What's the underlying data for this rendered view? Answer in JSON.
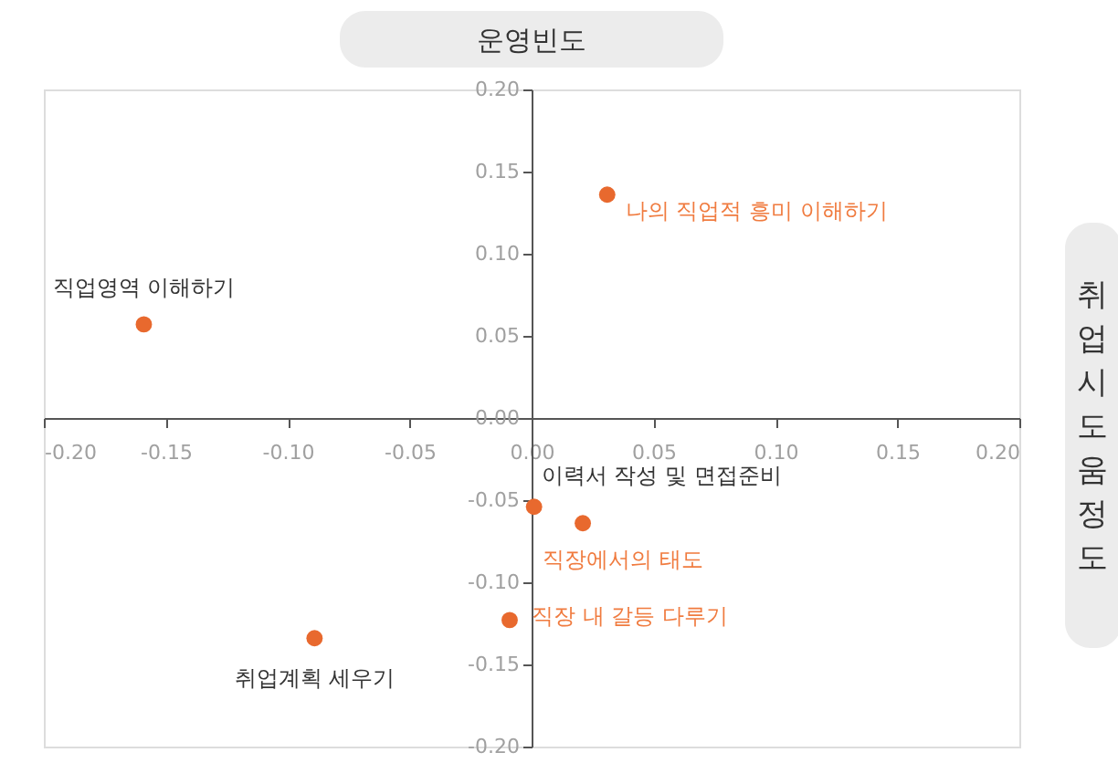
{
  "chart_data": {
    "type": "scatter",
    "xlabel": "취업시 도움정도",
    "ylabel": "운영빈도",
    "x": [
      0.031,
      -0.159,
      0.001,
      0.021,
      -0.009,
      -0.089
    ],
    "values": [
      0.136,
      0.057,
      -0.054,
      -0.064,
      -0.123,
      -0.134
    ],
    "color": "#e8692e",
    "marker": "circle",
    "xlim": [
      -0.2,
      0.2
    ],
    "xticks": [
      {
        "value": -0.2,
        "label": "-0.20"
      },
      {
        "value": -0.15,
        "label": "-0.15"
      },
      {
        "value": -0.1,
        "label": "-0.10"
      },
      {
        "value": -0.05,
        "label": "-0.05"
      },
      {
        "value": 0,
        "label": "0.00"
      },
      {
        "value": 0.05,
        "label": "0.05"
      },
      {
        "value": 0.1,
        "label": "0.10"
      },
      {
        "value": 0.15,
        "label": "0.15"
      },
      {
        "value": 0.2,
        "label": "0.20"
      }
    ],
    "ylim": [
      -0.2,
      0.2
    ],
    "yticks": [
      {
        "value": -0.2,
        "label": "-0.20"
      },
      {
        "value": -0.15,
        "label": "-0.15"
      },
      {
        "value": -0.1,
        "label": "-0.10"
      },
      {
        "value": -0.05,
        "label": "-0.05"
      },
      {
        "value": 0,
        "label": "0.00"
      },
      {
        "value": 0.05,
        "label": "0.05"
      },
      {
        "value": 0.1,
        "label": "0.10"
      },
      {
        "value": 0.15,
        "label": "0.15"
      },
      {
        "value": 0.2,
        "label": "0.20"
      }
    ],
    "grid": false,
    "annotations": [
      {
        "text": "나의 직업적 흥미 이해하기",
        "x": 0.031,
        "y": 0.136
      },
      {
        "text": "직업영역 이해하기",
        "x": -0.159,
        "y": 0.057
      },
      {
        "text": "이력서 작성 및 면접준비",
        "x": 0.001,
        "y": -0.054
      },
      {
        "text": "직장에서의 태도",
        "x": 0.021,
        "y": -0.064
      },
      {
        "text": "직장 내 갈등 다루기",
        "x": -0.009,
        "y": -0.123
      },
      {
        "text": "취업계획 세우기",
        "x": -0.089,
        "y": -0.134
      }
    ]
  }
}
